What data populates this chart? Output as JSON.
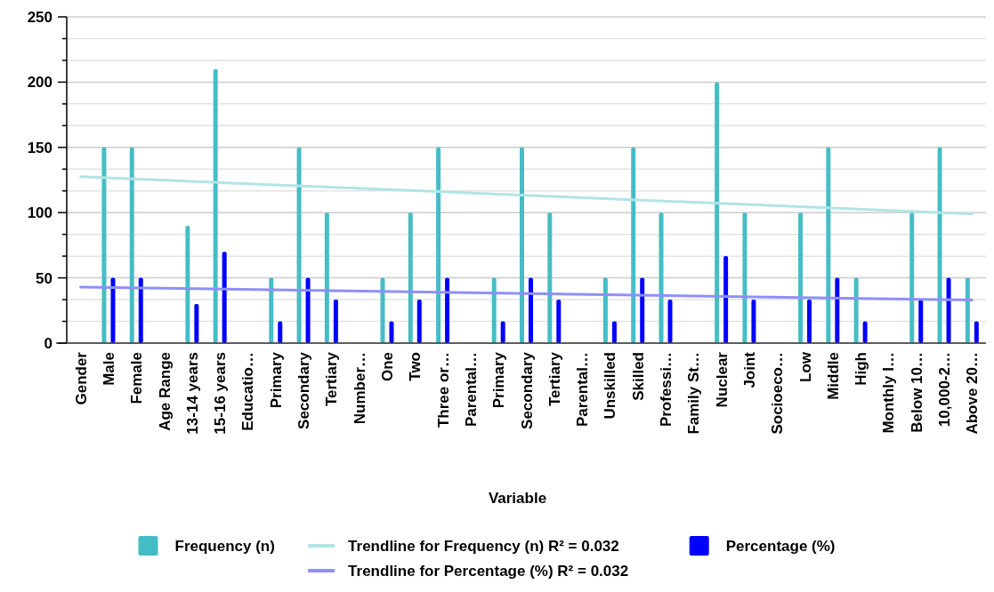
{
  "chart_data": {
    "type": "bar",
    "xlabel": "Variable",
    "categories": [
      "Gender",
      "Male",
      "Female",
      "Age Range",
      "13-14 years",
      "15-16 years",
      "Educatio…",
      "Primary",
      "Secondary",
      "Tertiary",
      "Number…",
      "One",
      "Two",
      "Three or…",
      "Parental…",
      "Primary",
      "Secondary",
      "Tertiary",
      "Parental…",
      "Unskilled",
      "Skilled",
      "Professi…",
      "Family St…",
      "Nuclear",
      "Joint",
      "Socioeco…",
      "Low",
      "Middle",
      "High",
      "Monthly I…",
      "Below 10…",
      "10,000-2…",
      "Above 20…"
    ],
    "series": [
      {
        "name": "Frequency (n)",
        "color": "#45bdc6",
        "values": [
          null,
          150,
          150,
          null,
          90,
          210,
          null,
          50,
          150,
          100,
          null,
          50,
          100,
          150,
          null,
          50,
          150,
          100,
          null,
          50,
          150,
          100,
          null,
          200,
          100,
          null,
          100,
          150,
          50,
          null,
          100,
          150,
          50
        ]
      },
      {
        "name": "Trendline for Frequency (n) R² = 0.032",
        "type": "line",
        "color": "#b2e4e6",
        "x": [
          "Gender",
          "Above 20…"
        ],
        "values": [
          127.5,
          99
        ]
      },
      {
        "name": "Percentage (%)",
        "color": "#0000ff",
        "values": [
          null,
          50,
          50,
          null,
          30,
          70,
          null,
          16.7,
          50,
          33.3,
          null,
          16.7,
          33.3,
          50,
          null,
          16.7,
          50,
          33.3,
          null,
          16.7,
          50,
          33.3,
          null,
          66.7,
          33.3,
          null,
          33.3,
          50,
          16.7,
          null,
          33.3,
          50,
          16.7
        ]
      },
      {
        "name": "Trendline for Percentage (%) R² = 0.032",
        "type": "line",
        "color": "#8f8ff8",
        "x": [
          "Gender",
          "Above 20…"
        ],
        "values": [
          43,
          33
        ]
      }
    ],
    "ylim": [
      0,
      250
    ],
    "yticks": [
      0,
      {
        "value": 16.67,
        "label": null
      },
      {
        "value": 33.33,
        "label": null
      },
      50,
      {
        "value": 66.67,
        "label": null
      },
      {
        "value": 83.33,
        "label": null
      },
      100,
      {
        "value": 116.67,
        "label": null
      },
      {
        "value": 133.33,
        "label": null
      },
      150,
      {
        "value": 166.67,
        "label": null
      },
      {
        "value": 183.33,
        "label": null
      },
      200,
      {
        "value": 216.67,
        "label": null
      },
      {
        "value": 233.33,
        "label": null
      },
      250
    ],
    "grid": true,
    "legend": "bottom"
  }
}
